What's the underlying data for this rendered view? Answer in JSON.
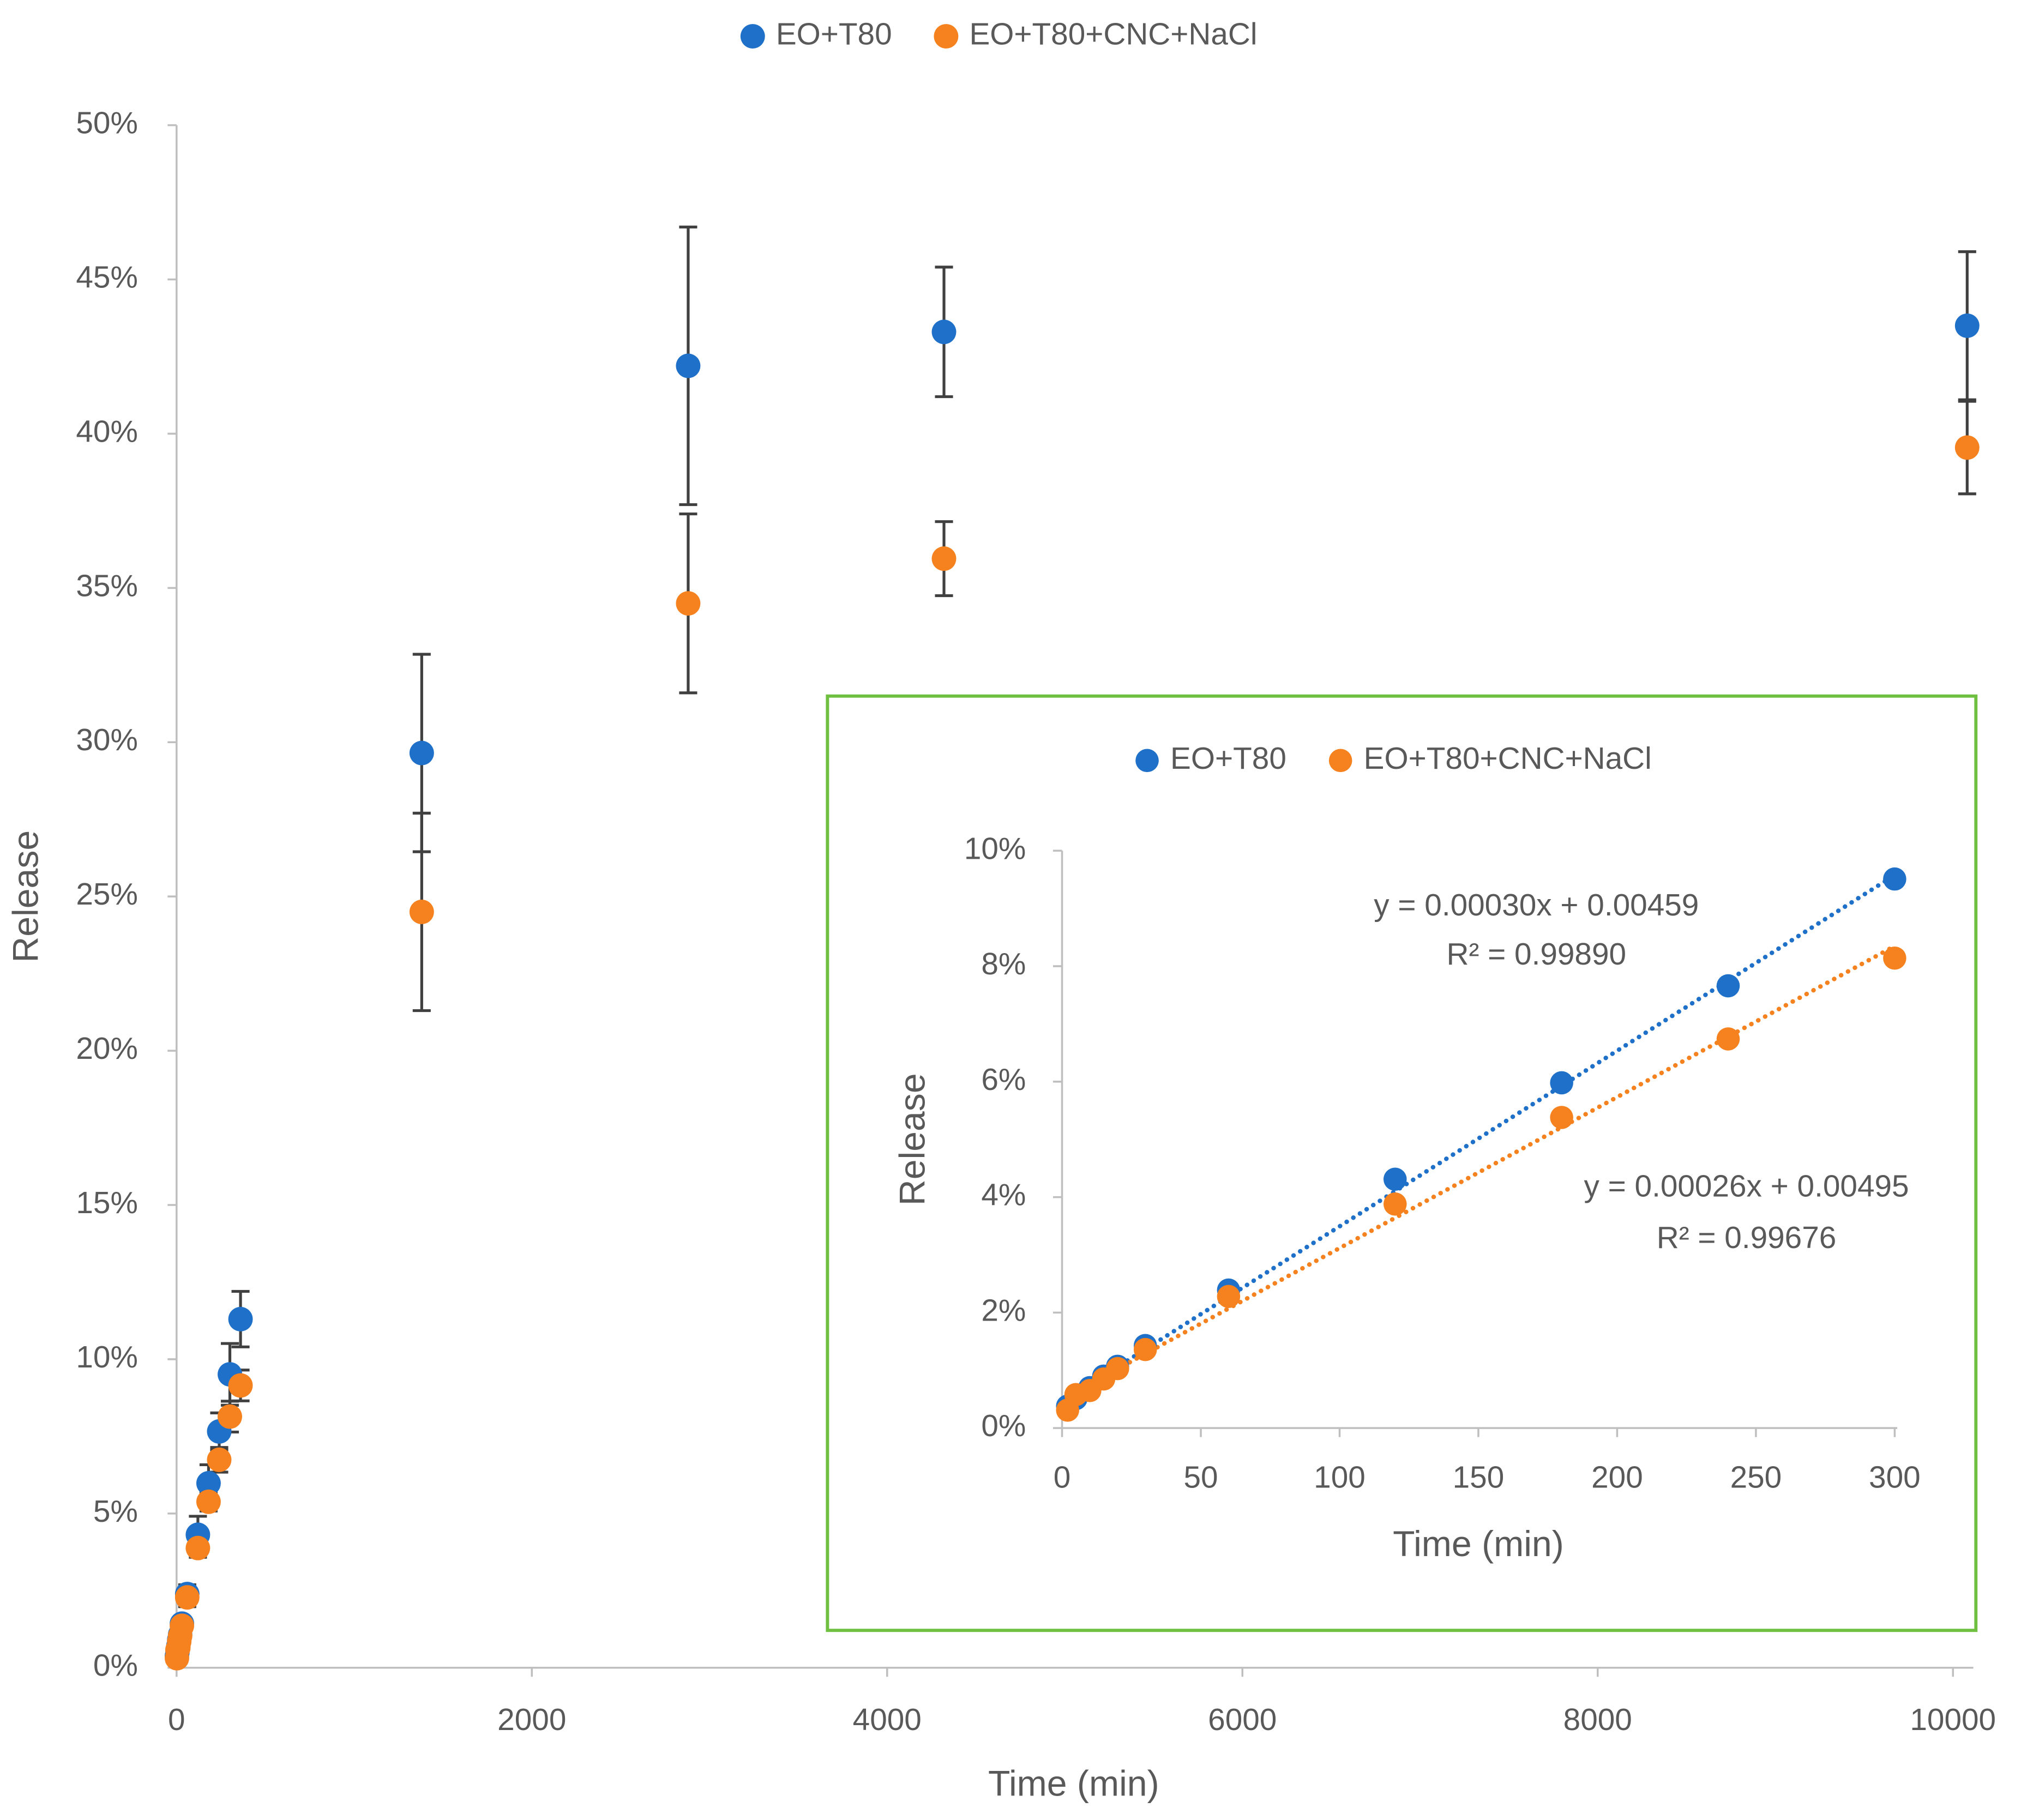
{
  "chart_data": [
    {
      "type": "scatter",
      "x_label": "Time (min)",
      "y_label": "Release",
      "x": [
        2,
        5,
        10,
        15,
        20,
        30,
        60,
        120,
        180,
        240,
        300,
        360,
        1380,
        2880,
        4320,
        10080
      ],
      "series": [
        {
          "name": "EO+T80",
          "color": "#1f70c8",
          "values": [
            0.38,
            0.51,
            0.7,
            0.9,
            1.07,
            1.43,
            2.39,
            4.31,
            5.98,
            7.66,
            9.51,
            11.3,
            29.65,
            42.2,
            43.3,
            43.5
          ],
          "errors": [
            0.1,
            0.1,
            0.1,
            0.1,
            0.1,
            0.2,
            0.3,
            0.6,
            0.6,
            0.6,
            1.0,
            0.9,
            3.2,
            4.5,
            2.1,
            2.4
          ]
        },
        {
          "name": "EO+T80+CNC+NaCl",
          "color": "#f5821f",
          "values": [
            0.31,
            0.58,
            0.65,
            0.85,
            1.03,
            1.36,
            2.28,
            3.88,
            5.38,
            6.74,
            8.14,
            9.15,
            24.5,
            34.5,
            35.95,
            39.55
          ],
          "errors": [
            0.1,
            0.1,
            0.1,
            0.1,
            0.1,
            0.1,
            0.3,
            0.3,
            0.3,
            0.4,
            0.5,
            0.5,
            3.2,
            2.9,
            1.2,
            1.5
          ]
        }
      ],
      "xlim": [
        0,
        10100
      ],
      "ylim": [
        0,
        50
      ],
      "xticks": [
        0,
        2000,
        4000,
        6000,
        8000,
        10000
      ],
      "yticks": [
        {
          "value": 0,
          "label": "0%"
        },
        {
          "value": 5,
          "label": "5%"
        },
        {
          "value": 10,
          "label": "10%"
        },
        {
          "value": 15,
          "label": "15%"
        },
        {
          "value": 20,
          "label": "20%"
        },
        {
          "value": 25,
          "label": "25%"
        },
        {
          "value": 30,
          "label": "30%"
        },
        {
          "value": 35,
          "label": "35%"
        },
        {
          "value": 40,
          "label": "40%"
        },
        {
          "value": 45,
          "label": "45%"
        },
        {
          "value": 50,
          "label": "50%"
        }
      ]
    },
    {
      "type": "scatter",
      "x_label": "Time (min)",
      "y_label": "Release",
      "trendline": true,
      "x": [
        2,
        5,
        10,
        15,
        20,
        30,
        60,
        120,
        180,
        240,
        300
      ],
      "series": [
        {
          "name": "EO+T80",
          "color": "#1f70c8",
          "values": [
            0.38,
            0.51,
            0.7,
            0.9,
            1.07,
            1.43,
            2.39,
            4.31,
            5.98,
            7.66,
            9.51
          ],
          "equation": [
            "y = 0.00030x + 0.00459",
            "R² = 0.99890"
          ]
        },
        {
          "name": "EO+T80+CNC+NaCl",
          "color": "#f5821f",
          "values": [
            0.31,
            0.58,
            0.65,
            0.85,
            1.03,
            1.36,
            2.28,
            3.88,
            5.38,
            6.74,
            8.14
          ],
          "equation": [
            "y = 0.00026x + 0.00495",
            "R² = 0.99676"
          ]
        }
      ],
      "xlim": [
        0,
        300
      ],
      "ylim": [
        0,
        10
      ],
      "xticks": [
        0,
        50,
        100,
        150,
        200,
        250,
        300
      ],
      "yticks": [
        {
          "value": 0,
          "label": "0%"
        },
        {
          "value": 2,
          "label": "2%"
        },
        {
          "value": 4,
          "label": "4%"
        },
        {
          "value": 6,
          "label": "6%"
        },
        {
          "value": 8,
          "label": "8%"
        },
        {
          "value": 10,
          "label": "10%"
        }
      ]
    }
  ]
}
